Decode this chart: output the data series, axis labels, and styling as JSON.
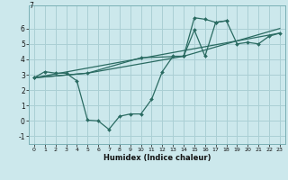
{
  "xlabel": "Humidex (Indice chaleur)",
  "background_color": "#cce8ec",
  "grid_color": "#aacfd4",
  "line_color": "#2a6b62",
  "xlim": [
    -0.5,
    23.5
  ],
  "ylim": [
    -1.5,
    7.5
  ],
  "xticks": [
    0,
    1,
    2,
    3,
    4,
    5,
    6,
    7,
    8,
    9,
    10,
    11,
    12,
    13,
    14,
    15,
    16,
    17,
    18,
    19,
    20,
    21,
    22,
    23
  ],
  "yticks": [
    -1,
    0,
    1,
    2,
    3,
    4,
    5,
    6
  ],
  "top_ylabel": "7",
  "line1_x": [
    0,
    1,
    2,
    3,
    4,
    5,
    6,
    7,
    8,
    9,
    10,
    11,
    12,
    13,
    14,
    15,
    16,
    17,
    18
  ],
  "line1_y": [
    2.8,
    3.2,
    3.1,
    3.1,
    2.6,
    0.05,
    0.0,
    -0.55,
    0.3,
    0.45,
    0.45,
    1.4,
    3.2,
    4.2,
    4.2,
    5.9,
    4.2,
    6.4,
    6.5
  ],
  "line2_x": [
    0,
    5,
    10,
    14,
    15,
    16,
    17,
    18,
    19,
    20,
    21,
    22,
    23
  ],
  "line2_y": [
    2.8,
    3.1,
    4.1,
    4.2,
    6.7,
    6.6,
    6.4,
    6.5,
    5.0,
    5.1,
    5.0,
    5.5,
    5.7
  ],
  "line3_x": [
    0,
    5,
    14,
    23
  ],
  "line3_y": [
    2.8,
    3.1,
    4.2,
    6.0
  ],
  "line4_x": [
    0,
    23
  ],
  "line4_y": [
    2.8,
    5.7
  ]
}
